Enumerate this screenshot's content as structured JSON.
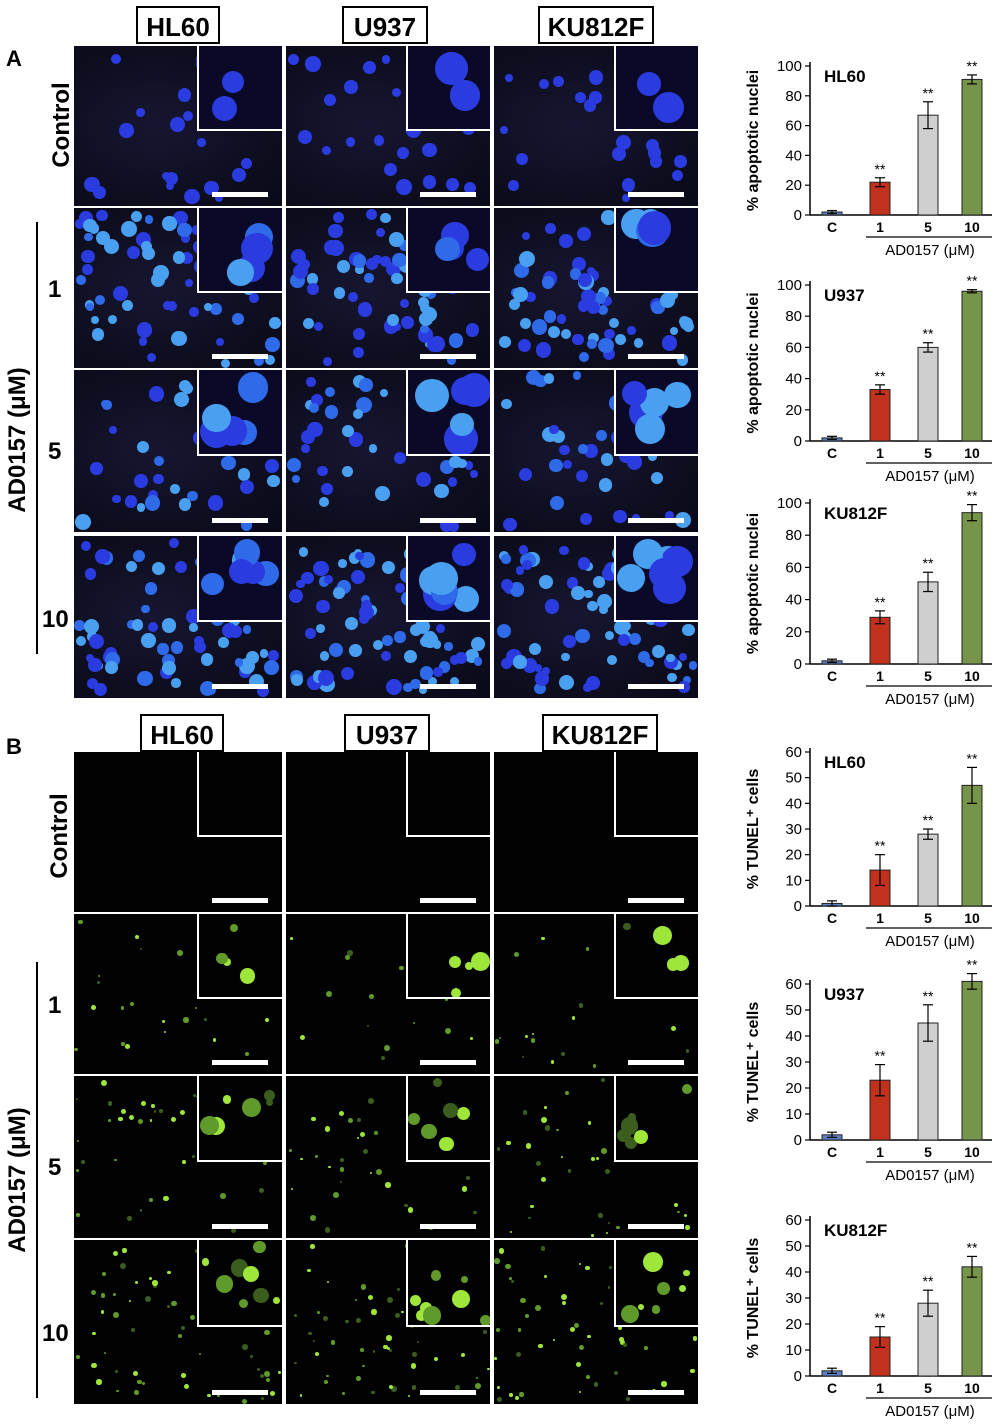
{
  "panels": {
    "A": {
      "letter": "A",
      "cell_lines": [
        "HL60",
        "U937",
        "KU812F"
      ]
    },
    "B": {
      "letter": "B",
      "cell_lines": [
        "HL60",
        "U937",
        "KU812F"
      ]
    }
  },
  "rows": {
    "control": "Control",
    "concentrations": [
      "1",
      "5",
      "10"
    ],
    "treatment_label": "AD0157 (μM)"
  },
  "colors": {
    "control": "#5b7fc4",
    "c1": "#c0321e",
    "c5": "#cfcfcf",
    "c10": "#77954a"
  },
  "chart_data": [
    {
      "type": "bar",
      "panel": "A",
      "title": "HL60",
      "ylabel": "% apoptotic nuclei",
      "xlabel": "AD0157 (μM)",
      "categories": [
        "C",
        "1",
        "5",
        "10"
      ],
      "values": [
        2,
        22,
        67,
        91
      ],
      "errors": [
        1,
        3,
        9,
        3
      ],
      "annotations": [
        "",
        "**",
        "**",
        "**"
      ],
      "ylim": [
        0,
        100
      ],
      "yticks": [
        0,
        20,
        40,
        60,
        80,
        100
      ]
    },
    {
      "type": "bar",
      "panel": "A",
      "title": "U937",
      "ylabel": "% apoptotic nuclei",
      "xlabel": "AD0157 (μM)",
      "categories": [
        "C",
        "1",
        "5",
        "10"
      ],
      "values": [
        2,
        33,
        60,
        96
      ],
      "errors": [
        1,
        3,
        3,
        1
      ],
      "annotations": [
        "",
        "**",
        "**",
        "**"
      ],
      "ylim": [
        0,
        100
      ],
      "yticks": [
        0,
        20,
        40,
        60,
        80,
        100
      ]
    },
    {
      "type": "bar",
      "panel": "A",
      "title": "KU812F",
      "ylabel": "% apoptotic nuclei",
      "xlabel": "AD0157 (μM)",
      "categories": [
        "C",
        "1",
        "5",
        "10"
      ],
      "values": [
        2,
        29,
        51,
        94
      ],
      "errors": [
        1,
        4,
        6,
        5
      ],
      "annotations": [
        "",
        "**",
        "**",
        "**"
      ],
      "ylim": [
        0,
        100
      ],
      "yticks": [
        0,
        20,
        40,
        60,
        80,
        100
      ]
    },
    {
      "type": "bar",
      "panel": "B",
      "title": "HL60",
      "ylabel": "% TUNEL⁺ cells",
      "xlabel": "AD0157 (μM)",
      "categories": [
        "C",
        "1",
        "5",
        "10"
      ],
      "values": [
        1,
        14,
        28,
        47
      ],
      "errors": [
        1,
        6,
        2,
        7
      ],
      "annotations": [
        "",
        "**",
        "**",
        "**"
      ],
      "ylim": [
        0,
        60
      ],
      "yticks": [
        0,
        10,
        20,
        30,
        40,
        50,
        60
      ]
    },
    {
      "type": "bar",
      "panel": "B",
      "title": "U937",
      "ylabel": "% TUNEL⁺ cells",
      "xlabel": "AD0157 (μM)",
      "categories": [
        "C",
        "1",
        "5",
        "10"
      ],
      "values": [
        2,
        23,
        45,
        61
      ],
      "errors": [
        1,
        6,
        7,
        3
      ],
      "annotations": [
        "",
        "**",
        "**",
        "**"
      ],
      "ylim": [
        0,
        60
      ],
      "yticks": [
        0,
        10,
        20,
        30,
        40,
        50,
        60
      ]
    },
    {
      "type": "bar",
      "panel": "B",
      "title": "KU812F",
      "ylabel": "% TUNEL⁺ cells",
      "xlabel": "AD0157 (μM)",
      "categories": [
        "C",
        "1",
        "5",
        "10"
      ],
      "values": [
        2,
        15,
        28,
        42
      ],
      "errors": [
        1,
        4,
        5,
        4
      ],
      "annotations": [
        "",
        "**",
        "**",
        "**"
      ],
      "ylim": [
        0,
        60
      ],
      "yticks": [
        0,
        10,
        20,
        30,
        40,
        50,
        60
      ]
    }
  ]
}
